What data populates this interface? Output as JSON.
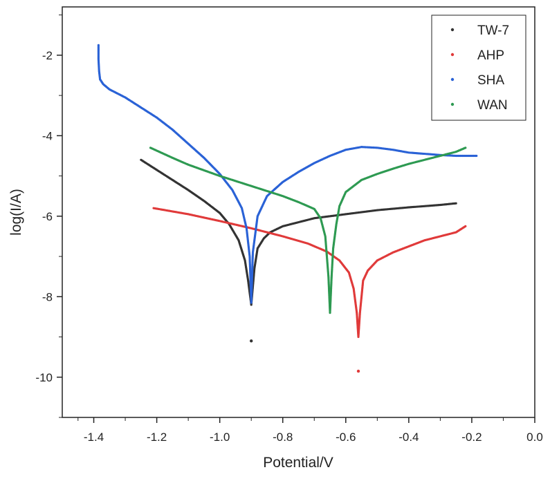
{
  "chart_data": {
    "type": "scatter",
    "title": "",
    "xlabel": "Potential/V",
    "ylabel": "log(I/A)",
    "xlim": [
      -1.5,
      0.0
    ],
    "ylim": [
      -11,
      -0.8
    ],
    "x_ticks": [
      -1.4,
      -1.2,
      -1.0,
      -0.8,
      -0.6,
      -0.4,
      -0.2,
      0.0
    ],
    "x_tick_labels": [
      "-1.4",
      "-1.2",
      "-1.0",
      "-0.8",
      "-0.6",
      "-0.4",
      "-0.2",
      "0.0"
    ],
    "y_ticks": [
      -2,
      -4,
      -6,
      -8,
      -10
    ],
    "y_tick_labels": [
      "-2",
      "-4",
      "-6",
      "-8",
      "-10"
    ],
    "grid": false,
    "legend_position": "top-right",
    "series": [
      {
        "name": "TW-7",
        "color": "#333333",
        "x": [
          -1.25,
          -1.2,
          -1.15,
          -1.1,
          -1.05,
          -1.0,
          -0.97,
          -0.94,
          -0.92,
          -0.91,
          -0.9,
          -0.89,
          -0.88,
          -0.86,
          -0.84,
          -0.8,
          -0.75,
          -0.7,
          -0.6,
          -0.5,
          -0.4,
          -0.3,
          -0.25
        ],
        "y": [
          -4.6,
          -4.85,
          -5.1,
          -5.35,
          -5.62,
          -5.92,
          -6.2,
          -6.6,
          -7.1,
          -7.6,
          -8.2,
          -7.3,
          -6.8,
          -6.55,
          -6.4,
          -6.25,
          -6.15,
          -6.05,
          -5.95,
          -5.85,
          -5.78,
          -5.72,
          -5.68
        ],
        "outliers": [
          [
            -0.9,
            -9.1
          ]
        ]
      },
      {
        "name": "AHP",
        "color": "#e03a3a",
        "x": [
          -1.21,
          -1.1,
          -1.0,
          -0.9,
          -0.8,
          -0.72,
          -0.66,
          -0.62,
          -0.59,
          -0.575,
          -0.565,
          -0.56,
          -0.555,
          -0.545,
          -0.53,
          -0.5,
          -0.45,
          -0.4,
          -0.35,
          -0.3,
          -0.25,
          -0.22
        ],
        "y": [
          -5.8,
          -5.95,
          -6.12,
          -6.3,
          -6.5,
          -6.68,
          -6.88,
          -7.1,
          -7.4,
          -7.8,
          -8.4,
          -9.0,
          -8.4,
          -7.6,
          -7.35,
          -7.1,
          -6.9,
          -6.75,
          -6.6,
          -6.5,
          -6.4,
          -6.25
        ],
        "outliers": [
          [
            -0.56,
            -9.85
          ]
        ]
      },
      {
        "name": "SHA",
        "color": "#2a62d6",
        "x": [
          -1.385,
          -1.385,
          -1.383,
          -1.38,
          -1.37,
          -1.35,
          -1.3,
          -1.25,
          -1.2,
          -1.15,
          -1.1,
          -1.05,
          -1.0,
          -0.96,
          -0.93,
          -0.915,
          -0.905,
          -0.9,
          -0.895,
          -0.88,
          -0.85,
          -0.8,
          -0.75,
          -0.7,
          -0.65,
          -0.6,
          -0.55,
          -0.5,
          -0.45,
          -0.4,
          -0.35,
          -0.3,
          -0.25,
          -0.2,
          -0.185
        ],
        "y": [
          -1.75,
          -2.1,
          -2.4,
          -2.6,
          -2.72,
          -2.85,
          -3.05,
          -3.3,
          -3.55,
          -3.85,
          -4.2,
          -4.55,
          -4.95,
          -5.35,
          -5.8,
          -6.3,
          -7.0,
          -8.15,
          -6.9,
          -6.0,
          -5.5,
          -5.15,
          -4.9,
          -4.68,
          -4.5,
          -4.35,
          -4.28,
          -4.3,
          -4.35,
          -4.42,
          -4.45,
          -4.48,
          -4.5,
          -4.5,
          -4.5
        ],
        "outliers": []
      },
      {
        "name": "WAN",
        "color": "#2e9a52",
        "x": [
          -1.22,
          -1.15,
          -1.1,
          -1.0,
          -0.9,
          -0.8,
          -0.75,
          -0.7,
          -0.68,
          -0.665,
          -0.655,
          -0.65,
          -0.645,
          -0.64,
          -0.635,
          -0.63,
          -0.62,
          -0.6,
          -0.55,
          -0.5,
          -0.45,
          -0.4,
          -0.35,
          -0.3,
          -0.25,
          -0.22
        ],
        "y": [
          -4.3,
          -4.55,
          -4.72,
          -5.0,
          -5.25,
          -5.5,
          -5.65,
          -5.82,
          -6.05,
          -6.5,
          -7.5,
          -8.4,
          -7.5,
          -6.8,
          -6.5,
          -6.2,
          -5.75,
          -5.4,
          -5.1,
          -4.95,
          -4.82,
          -4.7,
          -4.6,
          -4.5,
          -4.4,
          -4.3
        ],
        "outliers": []
      }
    ]
  }
}
